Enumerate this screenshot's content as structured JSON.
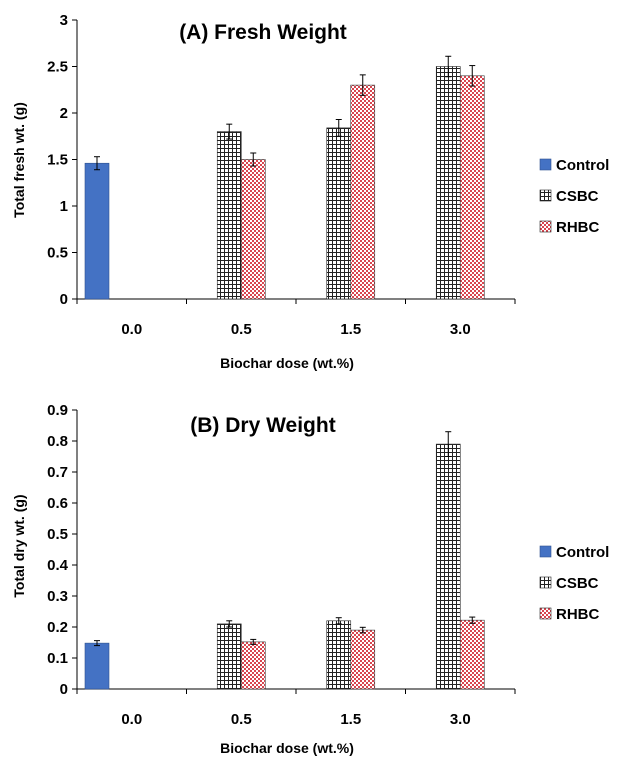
{
  "colors": {
    "control": "#4472c4",
    "csbc_fill": "#ffffff",
    "csbc_line": "#222222",
    "rhbc_fill": "#ffffff",
    "rhbc_dot": "#d9454f"
  },
  "chart_data": [
    {
      "type": "bar",
      "title": "(A) Fresh Weight",
      "xlabel": "Biochar dose (wt.%)",
      "ylabel": "Total fresh wt. (g)",
      "categories": [
        "0.0",
        "0.5",
        "1.5",
        "3.0"
      ],
      "ylim": [
        0,
        3
      ],
      "yticks": [
        "0",
        "0.5",
        "1",
        "1.5",
        "2",
        "2.5",
        "3"
      ],
      "legend": "right",
      "grid": false,
      "series": [
        {
          "name": "Control",
          "values": [
            1.46,
            null,
            null,
            null
          ],
          "errors": [
            0.07,
            null,
            null,
            null
          ]
        },
        {
          "name": "CSBC",
          "values": [
            null,
            1.8,
            1.84,
            2.5
          ],
          "errors": [
            null,
            0.08,
            0.09,
            0.11
          ]
        },
        {
          "name": "RHBC",
          "values": [
            null,
            1.5,
            2.3,
            2.4
          ],
          "errors": [
            null,
            0.07,
            0.11,
            0.11
          ]
        }
      ]
    },
    {
      "type": "bar",
      "title": "(B) Dry Weight",
      "xlabel": "Biochar dose (wt.%)",
      "ylabel": "Total dry wt. (g)",
      "categories": [
        "0.0",
        "0.5",
        "1.5",
        "3.0"
      ],
      "ylim": [
        0,
        0.9
      ],
      "yticks": [
        "0",
        "0.1",
        "0.2",
        "0.3",
        "0.4",
        "0.5",
        "0.6",
        "0.7",
        "0.8",
        "0.9"
      ],
      "legend": "right",
      "grid": false,
      "series": [
        {
          "name": "Control",
          "values": [
            0.148,
            null,
            null,
            null
          ],
          "errors": [
            0.008,
            null,
            null,
            null
          ]
        },
        {
          "name": "CSBC",
          "values": [
            null,
            0.21,
            0.22,
            0.79
          ],
          "errors": [
            null,
            0.01,
            0.01,
            0.04
          ]
        },
        {
          "name": "RHBC",
          "values": [
            null,
            0.152,
            0.19,
            0.222
          ],
          "errors": [
            null,
            0.008,
            0.009,
            0.01
          ]
        }
      ]
    }
  ]
}
